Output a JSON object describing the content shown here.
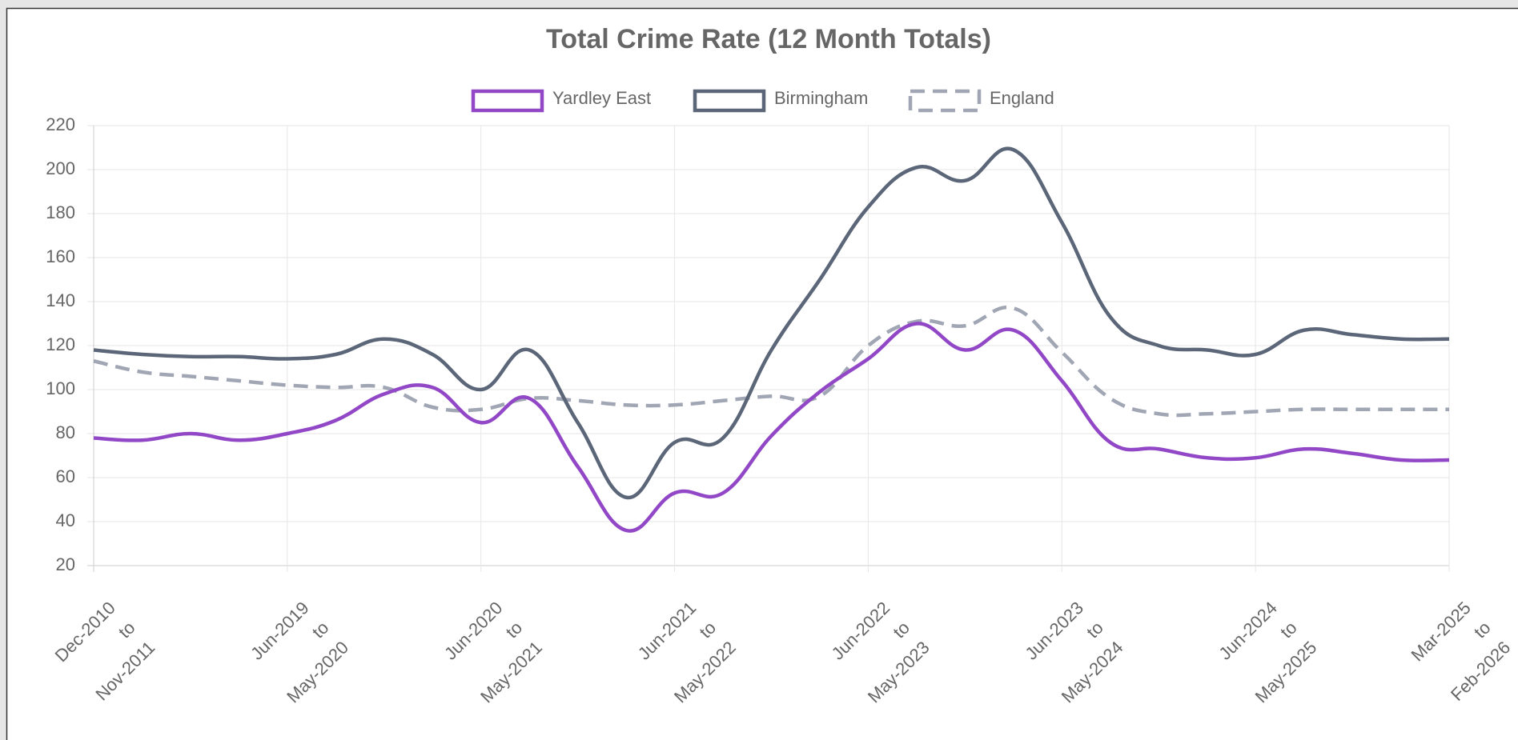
{
  "chart_data": {
    "type": "line",
    "title": "Total Crime Rate (12 Month Totals)",
    "categories": [
      "Dec-2010\nto\nNov-2011",
      null,
      null,
      null,
      "Jun-2019\nto\nMay-2020",
      null,
      null,
      null,
      "Jun-2020\nto\nMay-2021",
      null,
      null,
      null,
      "Jun-2021\nto\nMay-2022",
      null,
      null,
      null,
      "Jun-2022\nto\nMay-2023",
      null,
      null,
      null,
      "Jun-2023\nto\nMay-2024",
      null,
      null,
      null,
      "Jun-2024\nto\nMay-2025",
      null,
      null,
      null,
      "Mar-2025\nto\nFeb-2026"
    ],
    "series": [
      {
        "name": "Yardley East",
        "color": "#9147c6",
        "dashed": false,
        "values": [
          78,
          77,
          80,
          77,
          80,
          86,
          98,
          101,
          85,
          96,
          65,
          36,
          53,
          53,
          79,
          99,
          114,
          130,
          118,
          127,
          104,
          76,
          73,
          69,
          69,
          73,
          71,
          68,
          68
        ]
      },
      {
        "name": "Birmingham",
        "color": "#5b6679",
        "dashed": false,
        "values": [
          118,
          116,
          115,
          115,
          114,
          116,
          123,
          116,
          100,
          118,
          85,
          51,
          76,
          78,
          118,
          150,
          183,
          201,
          195,
          209,
          176,
          133,
          120,
          118,
          116,
          127,
          125,
          123,
          123
        ]
      },
      {
        "name": "England",
        "color": "#a0a6b4",
        "dashed": true,
        "values": [
          113,
          108,
          106,
          104,
          102,
          101,
          101,
          92,
          91,
          96,
          95,
          93,
          93,
          95,
          97,
          97,
          120,
          131,
          129,
          137,
          117,
          96,
          89,
          89,
          90,
          91,
          91,
          91,
          91
        ]
      }
    ],
    "ylim": [
      20,
      220
    ],
    "yticks": [
      20,
      40,
      60,
      80,
      100,
      120,
      140,
      160,
      180,
      200,
      220
    ],
    "grid": true
  }
}
